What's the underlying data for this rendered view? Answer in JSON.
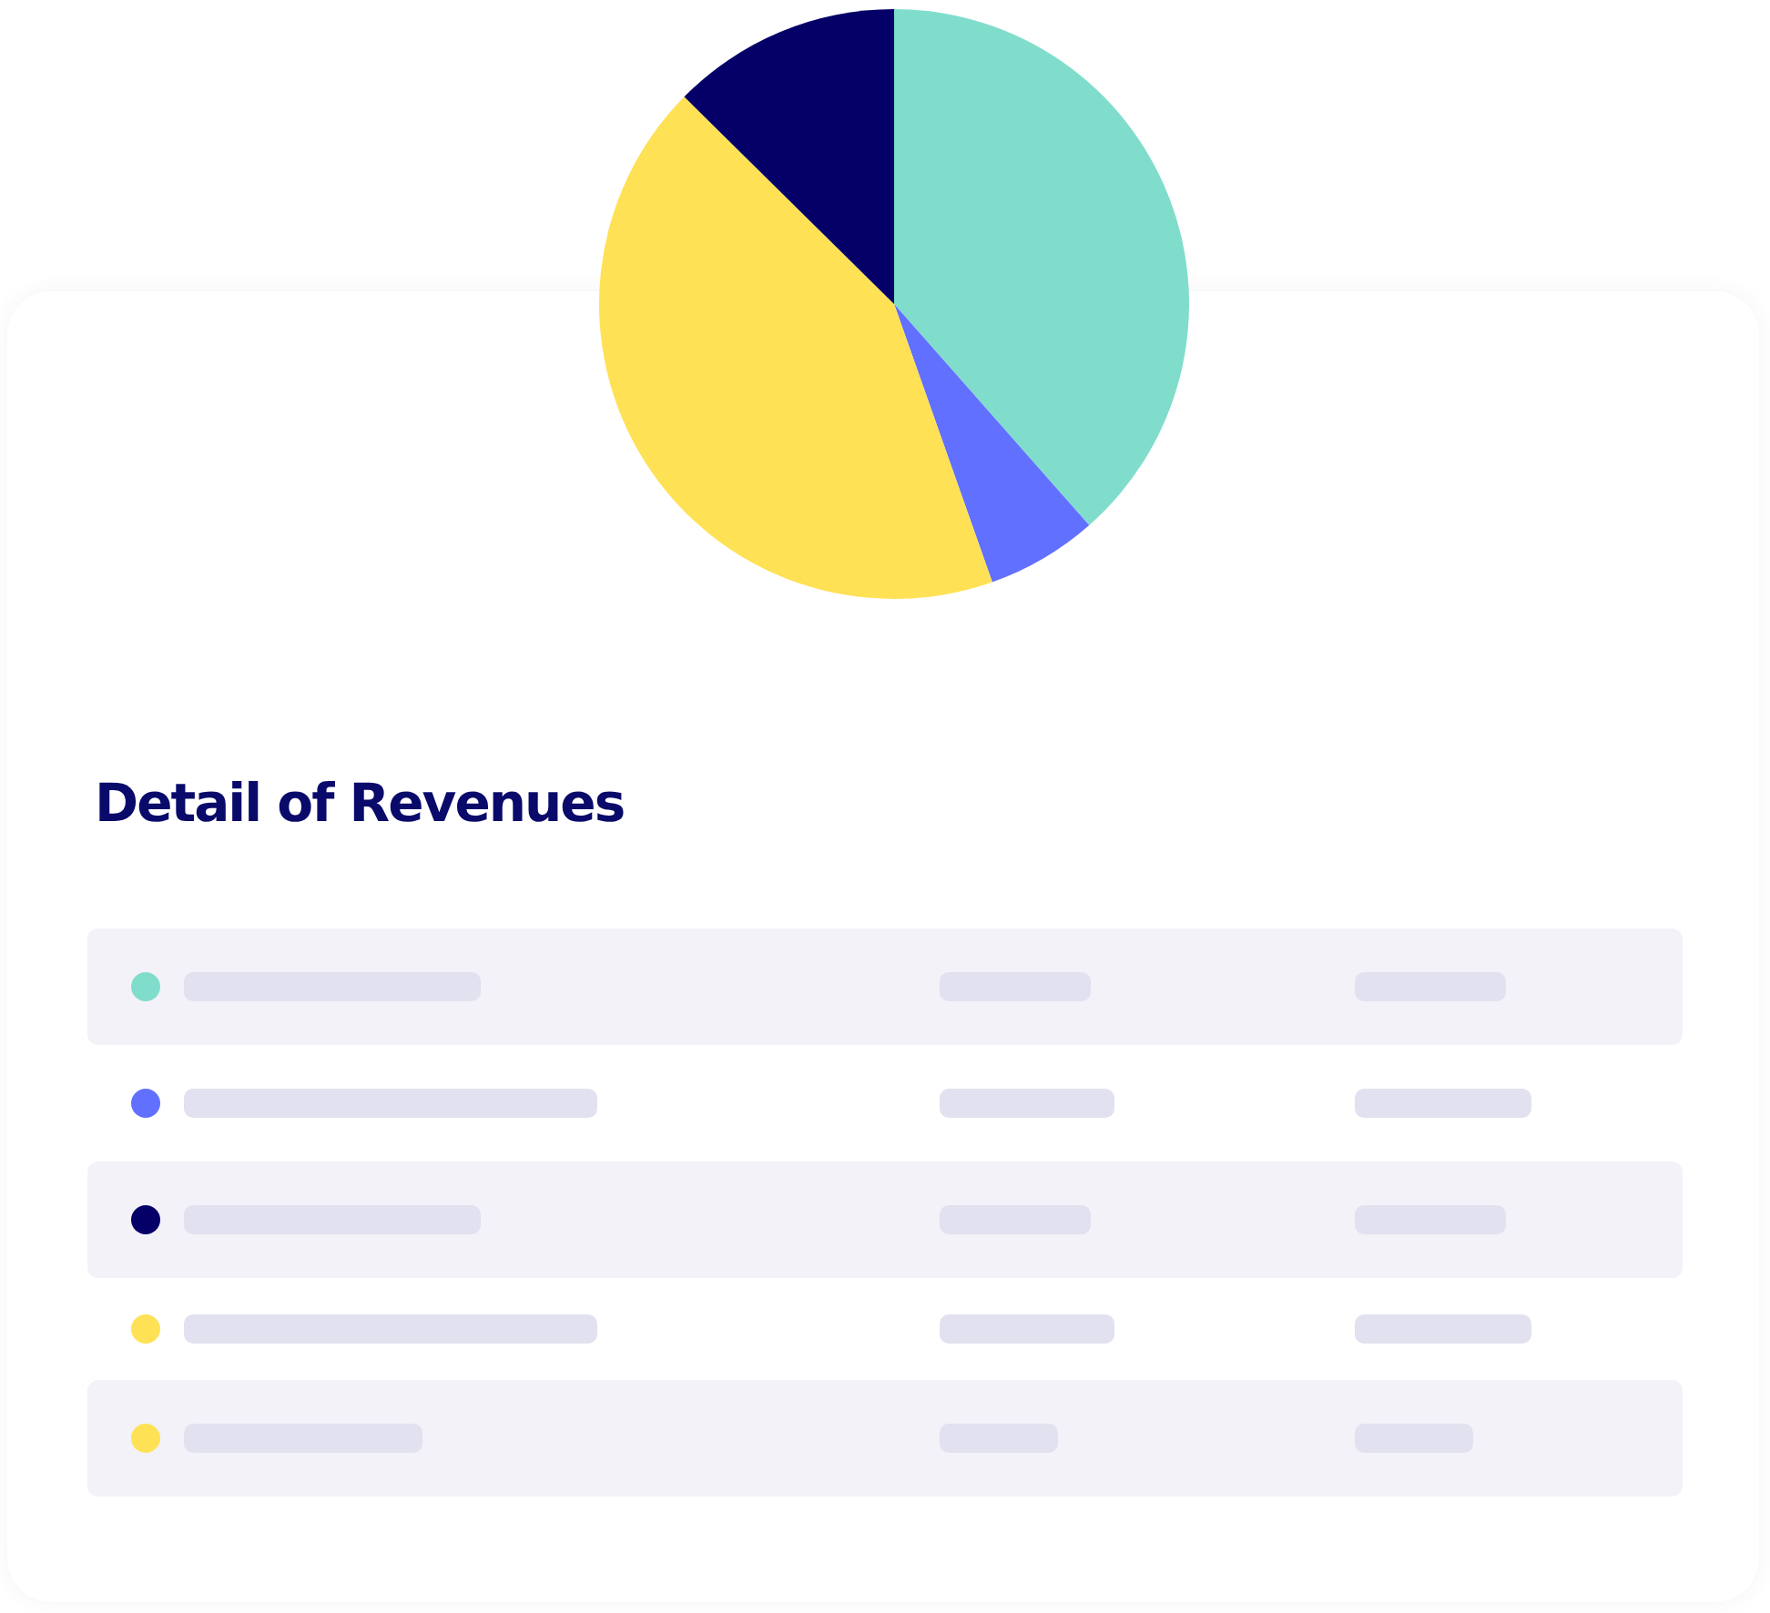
{
  "chart_data": {
    "type": "pie",
    "title": "Detail of Revenues",
    "categories": [
      null,
      null,
      null,
      null
    ],
    "values": [
      38.5,
      6.1,
      42.8,
      12.6
    ],
    "colors": [
      "#80ddcc",
      "#6170ff",
      "#ffe156",
      "#050068"
    ]
  }
}
